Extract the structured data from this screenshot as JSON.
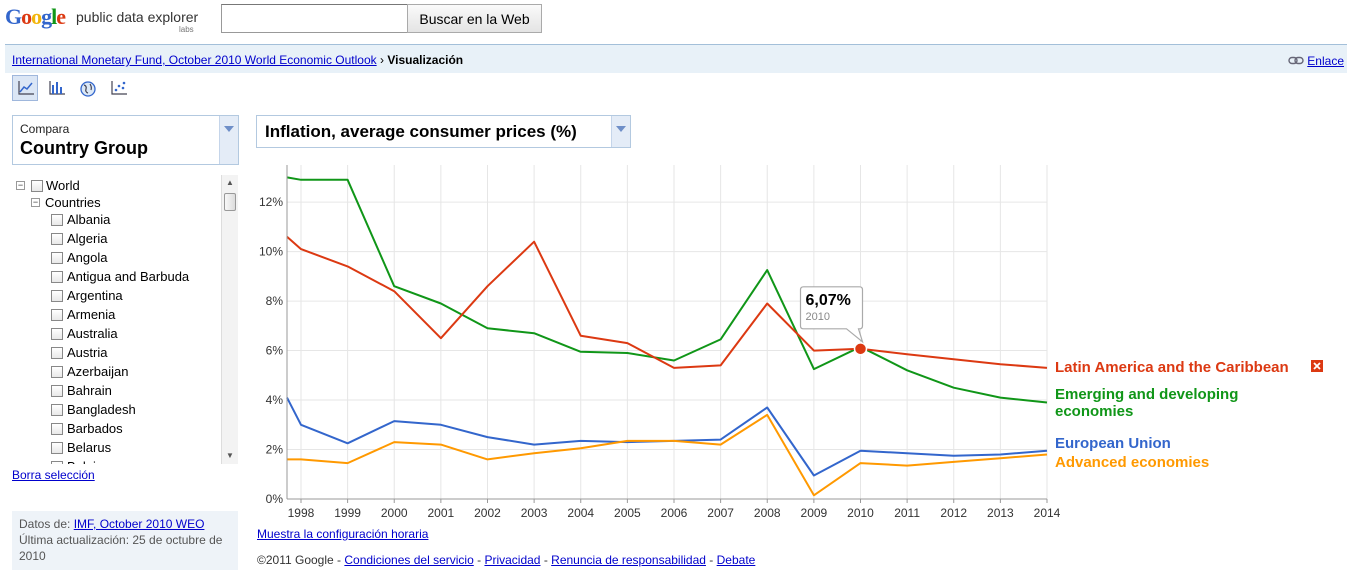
{
  "header": {
    "logo_text": "Google",
    "product_name": "public data explorer",
    "labs_label": "labs",
    "search_value": "",
    "search_button": "Buscar en la Web"
  },
  "breadcrumb": {
    "source_link": "International Monetary Fund, October 2010 World Economic Outlook",
    "separator": "›",
    "current": "Visualización",
    "link_label": "Enlace"
  },
  "view_toolbar": {
    "buttons": [
      {
        "icon": "line-chart-icon",
        "active": true
      },
      {
        "icon": "bar-chart-icon",
        "active": false
      },
      {
        "icon": "map-icon",
        "active": false
      },
      {
        "icon": "bubble-chart-icon",
        "active": false
      }
    ]
  },
  "compare": {
    "label": "Compara",
    "value": "Country Group"
  },
  "tree": {
    "root": "World",
    "group": "Countries",
    "items": [
      "Albania",
      "Algeria",
      "Angola",
      "Antigua and Barbuda",
      "Argentina",
      "Armenia",
      "Australia",
      "Austria",
      "Azerbaijan",
      "Bahrain",
      "Bangladesh",
      "Barbados",
      "Belarus",
      "Belgium"
    ]
  },
  "clear_selection": "Borra selección",
  "data_source": {
    "prefix": "Datos de:",
    "link": "IMF, October 2010 WEO",
    "updated_label": "Última actualización: 25 de octubre de 2010"
  },
  "metric": {
    "value": "Inflation, average consumer prices (%)"
  },
  "tooltip": {
    "value": "6,07%",
    "year": "2010"
  },
  "time_config_link": "Muestra la configuración horaria",
  "footer": {
    "copyright": "©2011 Google -",
    "links": [
      "Condiciones del servicio",
      "Privacidad",
      "Renuncia de responsabilidad",
      "Debate"
    ],
    "separator": "-"
  },
  "chart_data": {
    "type": "line",
    "title": "Inflation, average consumer prices (%)",
    "xlabel": "",
    "ylabel": "",
    "x": [
      1997.7,
      1998,
      1999,
      2000,
      2001,
      2002,
      2003,
      2004,
      2005,
      2006,
      2007,
      2008,
      2009,
      2010,
      2011,
      2012,
      2013,
      2014
    ],
    "xticks": [
      1998,
      1999,
      2000,
      2001,
      2002,
      2003,
      2004,
      2005,
      2006,
      2007,
      2008,
      2009,
      2010,
      2011,
      2012,
      2013,
      2014
    ],
    "ylim": [
      0,
      13.5
    ],
    "yticks": [
      0,
      2,
      4,
      6,
      8,
      10,
      12
    ],
    "ytick_labels": [
      "0%",
      "2%",
      "4%",
      "6%",
      "8%",
      "10%",
      "12%"
    ],
    "xlim": [
      1997.7,
      2014
    ],
    "highlight": {
      "series": 0,
      "x": 2010,
      "y": 6.07
    },
    "series": [
      {
        "name": "Latin America and the Caribbean",
        "color": "#dc3912",
        "highlighted": true,
        "values": [
          10.6,
          10.1,
          9.4,
          8.4,
          6.5,
          8.6,
          10.4,
          6.6,
          6.3,
          5.3,
          5.4,
          7.9,
          6.0,
          6.07,
          5.85,
          5.65,
          5.45,
          5.3
        ]
      },
      {
        "name": "Emerging and developing economies",
        "color": "#109618",
        "values": [
          13.0,
          12.9,
          12.9,
          8.6,
          7.9,
          6.9,
          6.7,
          5.95,
          5.9,
          5.6,
          6.45,
          9.25,
          5.25,
          6.15,
          5.2,
          4.5,
          4.1,
          3.9
        ]
      },
      {
        "name": "European Union",
        "color": "#3366cc",
        "values": [
          4.1,
          3.0,
          2.25,
          3.15,
          3.0,
          2.5,
          2.2,
          2.35,
          2.3,
          2.35,
          2.4,
          3.7,
          0.95,
          1.95,
          1.85,
          1.75,
          1.8,
          1.95
        ]
      },
      {
        "name": "Advanced economies",
        "color": "#ff9900",
        "values": [
          1.6,
          1.6,
          1.45,
          2.3,
          2.2,
          1.6,
          1.85,
          2.05,
          2.35,
          2.35,
          2.2,
          3.4,
          0.15,
          1.45,
          1.35,
          1.5,
          1.65,
          1.8
        ]
      }
    ]
  }
}
